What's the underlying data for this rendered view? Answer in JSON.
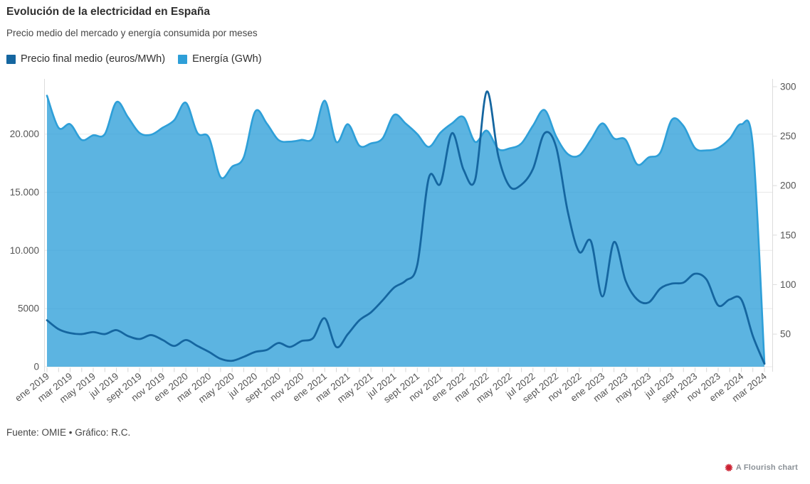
{
  "header": {
    "title": "Evolución de la electricidad en España",
    "subtitle": "Precio medio del mercado y energía consumida por meses"
  },
  "legend": {
    "items": [
      {
        "label": "Precio final medio (euros/MWh)",
        "color": "#1566a0"
      },
      {
        "label": "Energía (GWh)",
        "color": "#2e9fd8"
      }
    ]
  },
  "footer": {
    "text": "Fuente: OMIE • Gráfico: R.C."
  },
  "credit": {
    "text": "A Flourish chart",
    "icon": "flourish-flower-icon",
    "icon_color": "#cb1f30"
  },
  "chart_data": {
    "type": "area",
    "subtype": "dual-axis area + line, smoothed monthly series",
    "x": [
      "ene 2019",
      "feb 2019",
      "mar 2019",
      "abr 2019",
      "may 2019",
      "jun 2019",
      "jul 2019",
      "ago 2019",
      "sept 2019",
      "oct 2019",
      "nov 2019",
      "dic 2019",
      "ene 2020",
      "feb 2020",
      "mar 2020",
      "abr 2020",
      "may 2020",
      "jun 2020",
      "jul 2020",
      "ago 2020",
      "sept 2020",
      "oct 2020",
      "nov 2020",
      "dic 2020",
      "ene 2021",
      "feb 2021",
      "mar 2021",
      "abr 2021",
      "may 2021",
      "jun 2021",
      "jul 2021",
      "ago 2021",
      "sept 2021",
      "oct 2021",
      "nov 2021",
      "dic 2021",
      "ene 2022",
      "feb 2022",
      "mar 2022",
      "abr 2022",
      "may 2022",
      "jun 2022",
      "jul 2022",
      "ago 2022",
      "sept 2022",
      "oct 2022",
      "nov 2022",
      "dic 2022",
      "ene 2023",
      "feb 2023",
      "mar 2023",
      "abr 2023",
      "may 2023",
      "jun 2023",
      "jul 2023",
      "ago 2023",
      "sept 2023",
      "oct 2023",
      "nov 2023",
      "dic 2023",
      "ene 2024",
      "feb 2024",
      "mar 2024"
    ],
    "x_label_every": 2,
    "series": [
      {
        "name": "Energía (GWh)",
        "type": "area",
        "axis": "left",
        "stroke": "#2e9fd8",
        "fill": "rgba(46,159,216,0.78)",
        "values": [
          23300,
          20550,
          20850,
          19500,
          19900,
          20000,
          22750,
          21450,
          20100,
          19950,
          20550,
          21200,
          22700,
          20100,
          19700,
          16300,
          17200,
          18000,
          21950,
          20900,
          19500,
          19350,
          19500,
          19700,
          22870,
          19330,
          20850,
          19000,
          19200,
          19630,
          21650,
          20900,
          20000,
          18900,
          20120,
          20920,
          21460,
          19330,
          20300,
          18720,
          18780,
          19200,
          20730,
          22070,
          19800,
          18290,
          18170,
          19510,
          20920,
          19630,
          19510,
          17400,
          18000,
          18410,
          21230,
          20700,
          18800,
          18600,
          18800,
          19600,
          20850,
          19000,
          300
        ]
      },
      {
        "name": "Precio final medio (euros/MWh)",
        "type": "line",
        "axis": "right",
        "stroke": "#1566a0",
        "values": [
          64,
          55,
          51,
          50,
          52,
          50,
          54,
          48,
          45,
          49,
          44,
          38,
          44,
          38,
          32,
          25,
          23,
          27,
          32,
          34,
          41,
          37,
          43,
          46,
          66,
          37,
          50,
          64,
          72,
          84,
          97,
          104,
          120,
          208,
          202,
          253,
          216,
          206,
          295,
          230,
          199,
          201,
          217,
          253,
          239,
          174,
          133,
          144,
          88,
          143,
          104,
          85,
          82,
          96,
          101,
          102,
          111,
          105,
          79,
          85,
          85,
          48,
          20
        ]
      }
    ],
    "axes": {
      "left": {
        "min": 0,
        "max": 24500,
        "ticks": [
          0,
          5000,
          10000,
          15000,
          20000
        ],
        "tick_labels": [
          "0",
          "5000",
          "10.000",
          "15.000",
          "20.000"
        ]
      },
      "right": {
        "min": 17,
        "max": 305,
        "ticks": [
          50,
          100,
          150,
          200,
          250,
          300
        ],
        "tick_labels": [
          "50",
          "100",
          "150",
          "200",
          "250",
          "300"
        ]
      }
    },
    "grid": "horizontal, left-axis ticks only",
    "legend_position": "top-left",
    "title": "Evolución de la electricidad en España",
    "xlabel": "",
    "ylabel_left": "Energía (GWh)",
    "ylabel_right": "Precio final medio (euros/MWh)"
  }
}
